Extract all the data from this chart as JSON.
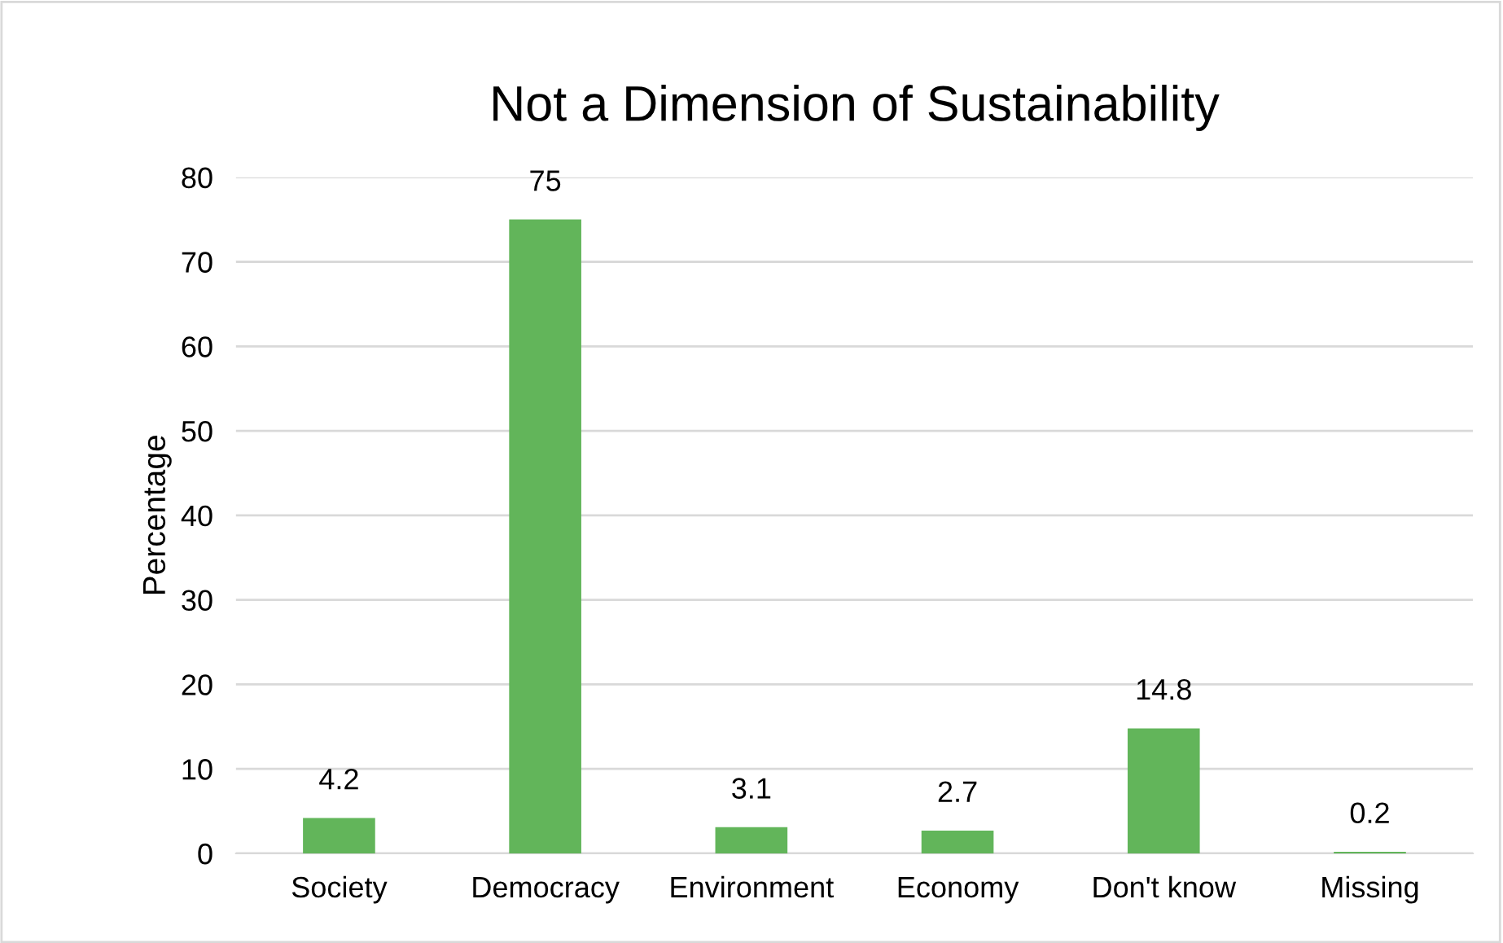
{
  "chart_data": {
    "type": "bar",
    "title": "Not a Dimension of Sustainability",
    "ylabel": "Percentage",
    "categories": [
      "Society",
      "Democracy",
      "Environment",
      "Economy",
      "Don't know",
      "Missing"
    ],
    "values": [
      4.2,
      75,
      3.1,
      2.7,
      14.8,
      0.2
    ],
    "color": "#62b55a",
    "ylim": [
      0,
      80
    ],
    "yticks": [
      0,
      10,
      20,
      30,
      40,
      50,
      60,
      70,
      80
    ],
    "grid": "y",
    "data_labels": true,
    "legend": false
  }
}
